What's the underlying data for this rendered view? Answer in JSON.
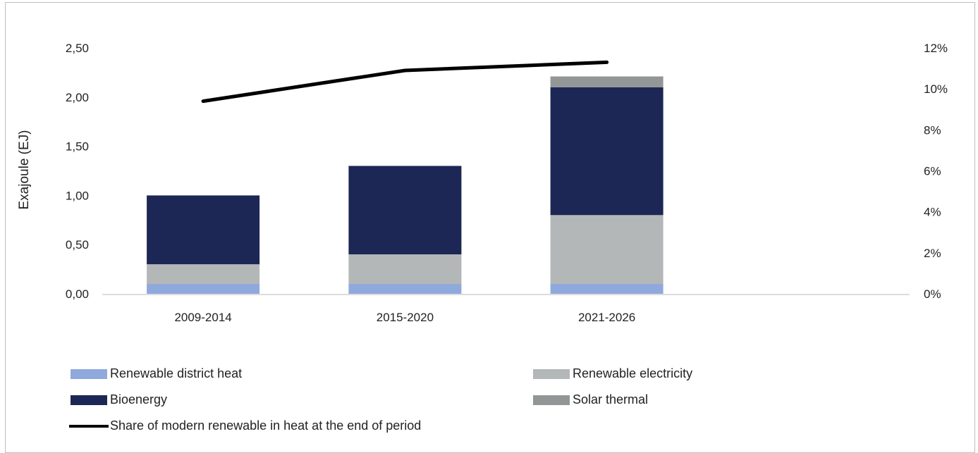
{
  "chart_data": {
    "type": "bar",
    "stacked": true,
    "categories": [
      "2009-2014",
      "2015-2020",
      "2021-2026"
    ],
    "series": [
      {
        "name": "Renewable district heat",
        "values": [
          0.1,
          0.1,
          0.1
        ],
        "color": "#8fa9dc"
      },
      {
        "name": "Renewable electricity",
        "values": [
          0.2,
          0.3,
          0.7
        ],
        "color": "#b4b7b8"
      },
      {
        "name": "Bioenergy",
        "values": [
          0.7,
          0.9,
          1.3
        ],
        "color": "#1c2755"
      },
      {
        "name": "Solar thermal",
        "values": [
          0.0,
          0.0,
          0.11
        ],
        "color": "#939696"
      }
    ],
    "line_series": {
      "name": "Share of modern renewable in heat at the end of period",
      "values": [
        9.4,
        10.9,
        11.3
      ],
      "axis": "right",
      "color": "#000000"
    },
    "ylabel": "Exajoule (EJ)",
    "ylim": [
      0,
      2.5
    ],
    "y_ticks": [
      "0,00",
      "0,50",
      "1,00",
      "1,50",
      "2,00",
      "2,50"
    ],
    "y2lim": [
      0,
      12
    ],
    "y2_ticks": [
      "0%",
      "2%",
      "4%",
      "6%",
      "8%",
      "10%",
      "12%"
    ],
    "grid": false,
    "legend_position": "bottom"
  }
}
